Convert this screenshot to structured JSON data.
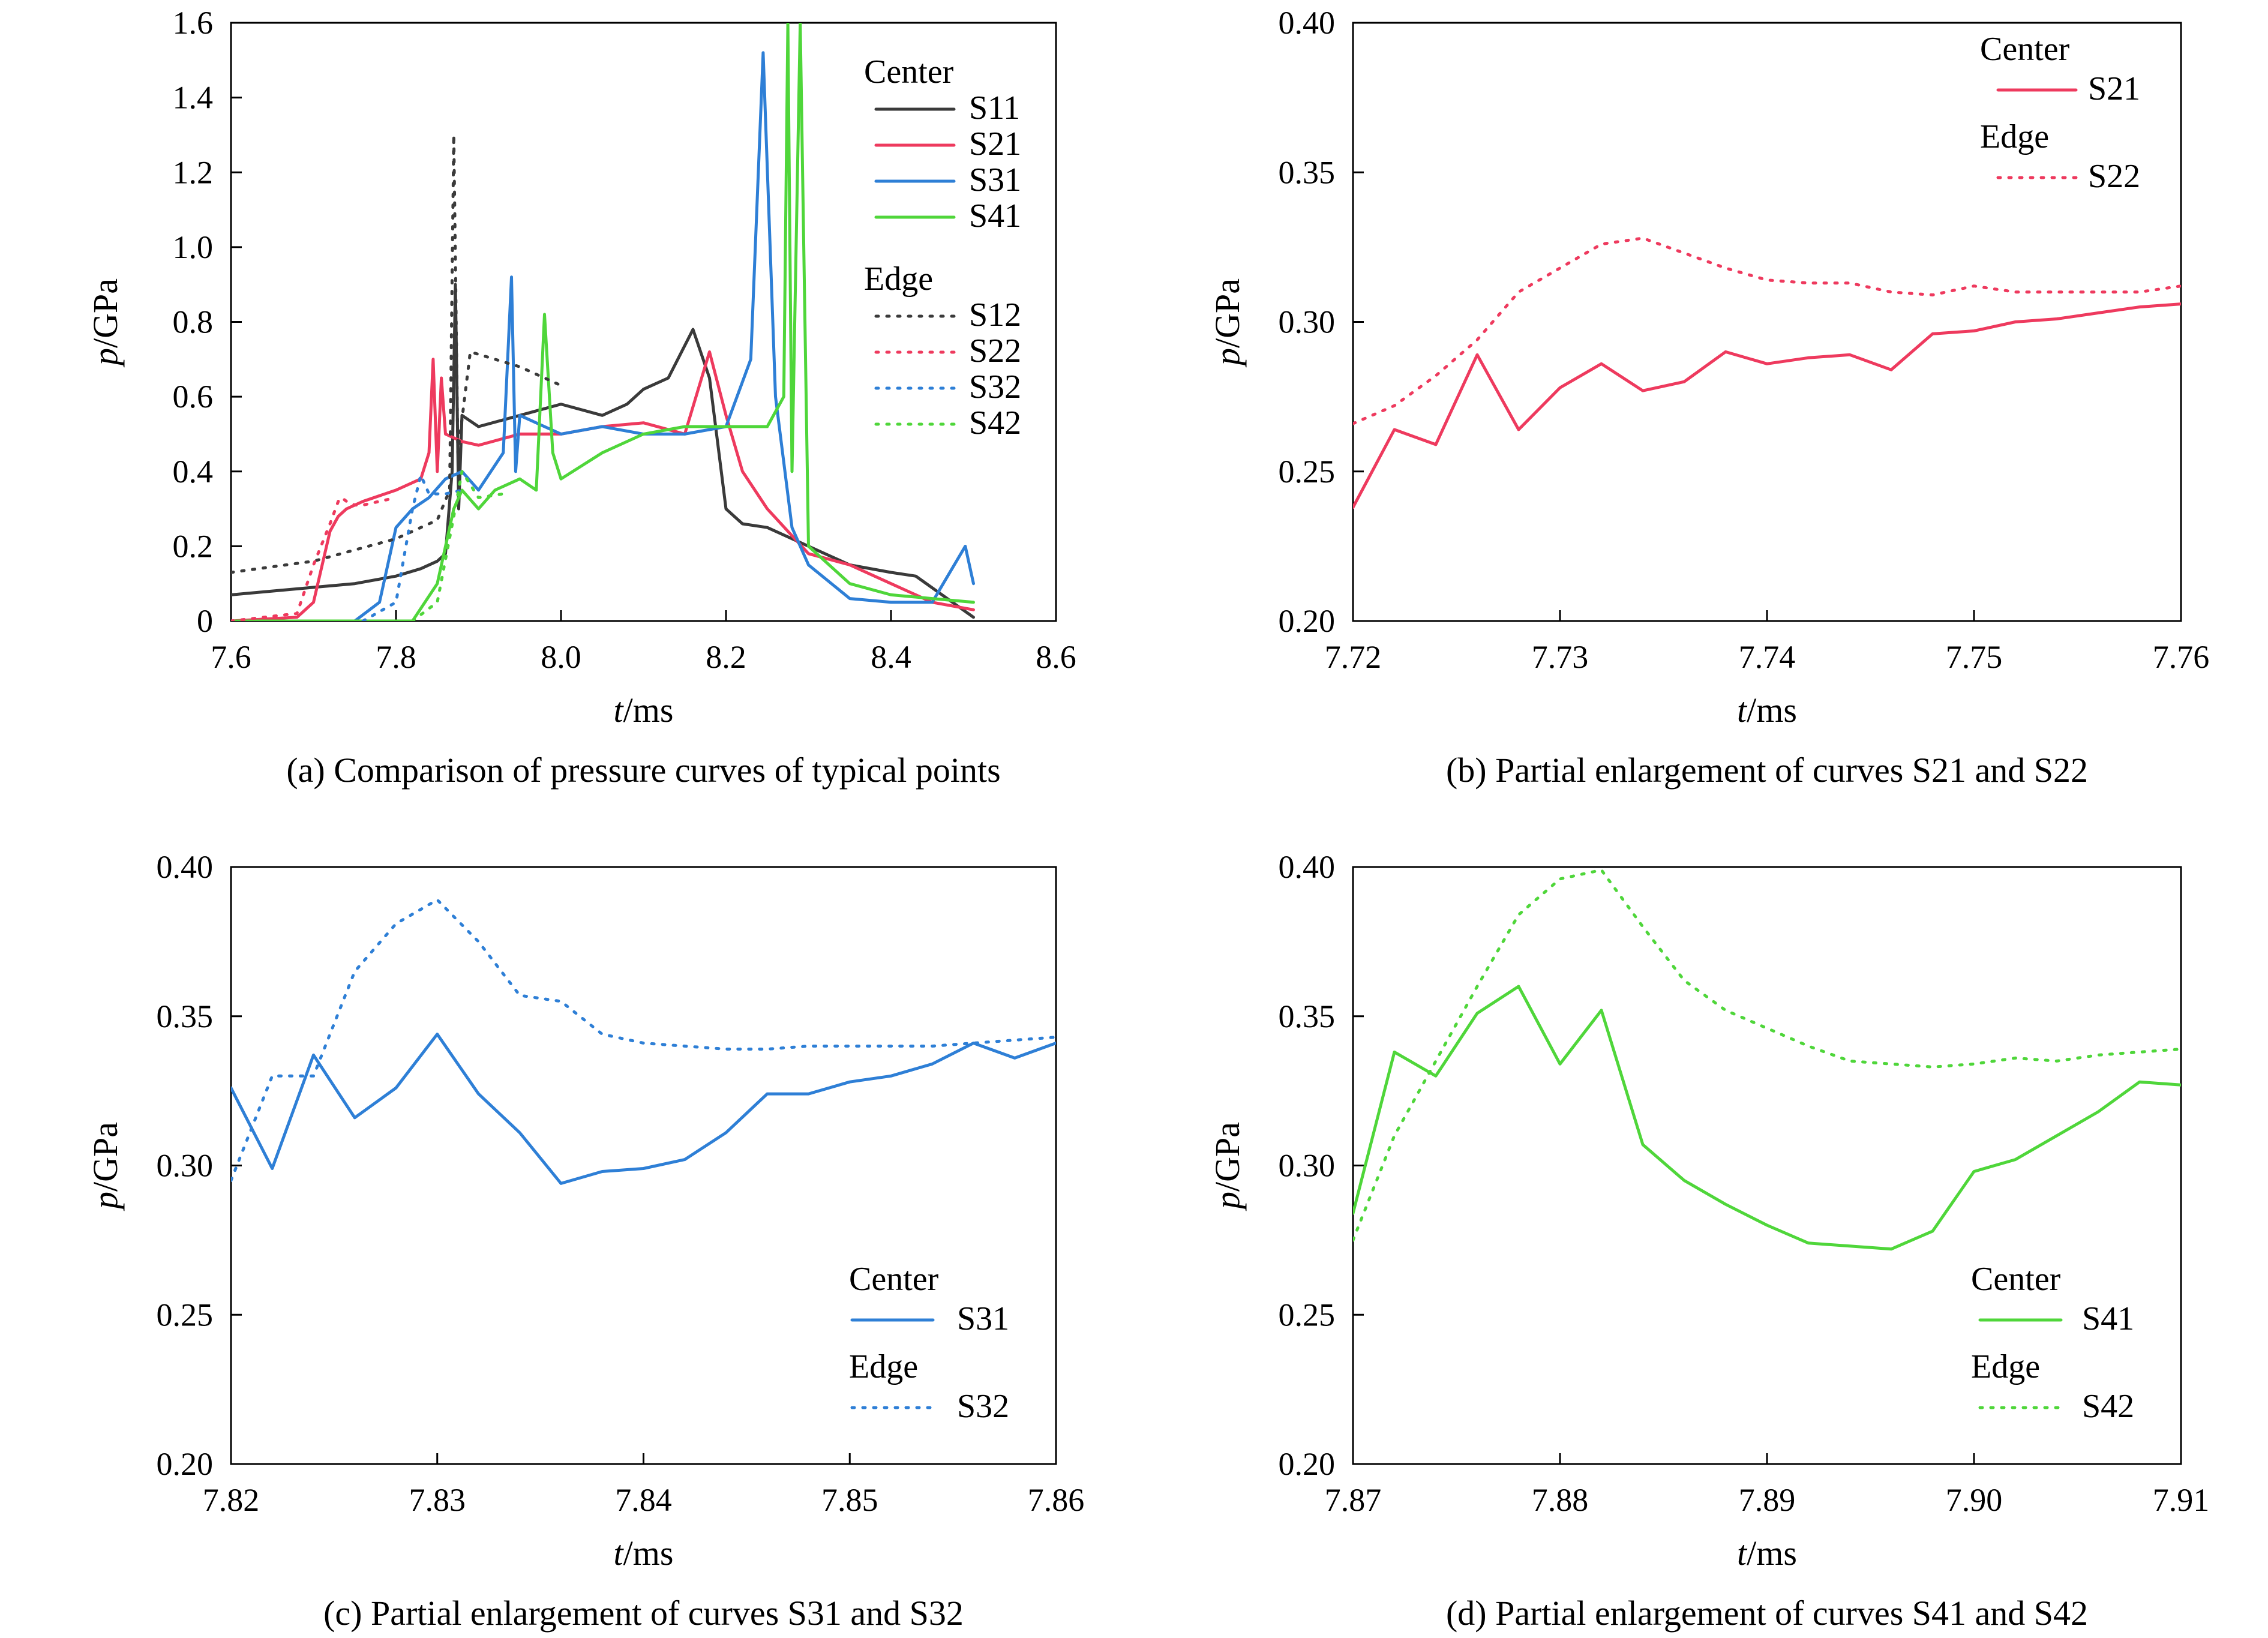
{
  "chart_data": [
    {
      "id": "a",
      "type": "line",
      "caption": "(a) Comparison of pressure curves of typical points",
      "xlabel_italic": "t",
      "xlabel_unit": "/ms",
      "ylabel_italic": "p",
      "ylabel_unit": "/GPa",
      "xlim": [
        7.6,
        8.6
      ],
      "ylim": [
        0,
        1.6
      ],
      "xticks": [
        "7.6",
        "7.8",
        "8.0",
        "8.2",
        "8.4",
        "8.6"
      ],
      "yticks": [
        "0",
        "0.2",
        "0.4",
        "0.6",
        "0.8",
        "1.0",
        "1.2",
        "1.4",
        "1.6"
      ],
      "legend_position": "top-right",
      "legend": [
        {
          "group": "Center",
          "entries": [
            "S11",
            "S21",
            "S31",
            "S41"
          ]
        },
        {
          "group": "Edge",
          "entries": [
            "S12",
            "S22",
            "S32",
            "S42"
          ]
        }
      ],
      "series": [
        {
          "name": "S11",
          "color": "#3a3a3a",
          "style": "solid",
          "x": [
            7.6,
            7.65,
            7.7,
            7.75,
            7.8,
            7.83,
            7.85,
            7.86,
            7.868,
            7.872,
            7.876,
            7.88,
            7.9,
            7.95,
            8.0,
            8.05,
            8.08,
            8.1,
            8.13,
            8.16,
            8.18,
            8.2,
            8.22,
            8.25,
            8.3,
            8.35,
            8.4,
            8.43,
            8.5
          ],
          "y": [
            0.07,
            0.08,
            0.09,
            0.1,
            0.12,
            0.14,
            0.16,
            0.18,
            0.4,
            0.9,
            0.3,
            0.55,
            0.52,
            0.55,
            0.58,
            0.55,
            0.58,
            0.62,
            0.65,
            0.78,
            0.65,
            0.3,
            0.26,
            0.25,
            0.2,
            0.15,
            0.13,
            0.12,
            0.01
          ]
        },
        {
          "name": "S21",
          "color": "#ee3a5e",
          "style": "solid",
          "x": [
            7.6,
            7.68,
            7.7,
            7.72,
            7.73,
            7.74,
            7.76,
            7.8,
            7.83,
            7.84,
            7.845,
            7.85,
            7.855,
            7.86,
            7.88,
            7.9,
            7.95,
            8.0,
            8.05,
            8.1,
            8.15,
            8.18,
            8.2,
            8.22,
            8.25,
            8.3,
            8.35,
            8.4,
            8.45,
            8.5
          ],
          "y": [
            0.0,
            0.01,
            0.05,
            0.24,
            0.28,
            0.3,
            0.32,
            0.35,
            0.38,
            0.45,
            0.7,
            0.4,
            0.65,
            0.5,
            0.48,
            0.47,
            0.5,
            0.5,
            0.52,
            0.53,
            0.5,
            0.72,
            0.55,
            0.4,
            0.3,
            0.18,
            0.15,
            0.1,
            0.05,
            0.03
          ]
        },
        {
          "name": "S31",
          "color": "#2e7fd6",
          "style": "solid",
          "x": [
            7.6,
            7.75,
            7.78,
            7.8,
            7.82,
            7.84,
            7.86,
            7.88,
            7.9,
            7.93,
            7.94,
            7.945,
            7.95,
            7.98,
            8.0,
            8.05,
            8.1,
            8.15,
            8.2,
            8.23,
            8.245,
            8.26,
            8.28,
            8.3,
            8.35,
            8.4,
            8.45,
            8.49,
            8.5
          ],
          "y": [
            0.0,
            0.0,
            0.05,
            0.25,
            0.3,
            0.33,
            0.38,
            0.4,
            0.35,
            0.45,
            0.92,
            0.4,
            0.55,
            0.52,
            0.5,
            0.52,
            0.5,
            0.5,
            0.52,
            0.7,
            1.52,
            0.6,
            0.25,
            0.15,
            0.06,
            0.05,
            0.05,
            0.2,
            0.1
          ]
        },
        {
          "name": "S41",
          "color": "#4fd63a",
          "style": "solid",
          "x": [
            7.6,
            7.82,
            7.85,
            7.87,
            7.88,
            7.9,
            7.92,
            7.95,
            7.97,
            7.98,
            7.99,
            8.0,
            8.05,
            8.1,
            8.15,
            8.2,
            8.25,
            8.27,
            8.275,
            8.28,
            8.29,
            8.3,
            8.35,
            8.4,
            8.45,
            8.5
          ],
          "y": [
            0.0,
            0.0,
            0.1,
            0.3,
            0.35,
            0.3,
            0.35,
            0.38,
            0.35,
            0.82,
            0.45,
            0.38,
            0.45,
            0.5,
            0.52,
            0.52,
            0.52,
            0.6,
            1.6,
            0.4,
            1.6,
            0.2,
            0.1,
            0.07,
            0.06,
            0.05
          ]
        },
        {
          "name": "S12",
          "color": "#3a3a3a",
          "style": "dotted",
          "x": [
            7.6,
            7.7,
            7.8,
            7.85,
            7.865,
            7.87,
            7.875,
            7.89,
            7.92,
            7.95,
            8.0
          ],
          "y": [
            0.13,
            0.16,
            0.22,
            0.27,
            0.35,
            1.3,
            0.45,
            0.72,
            0.7,
            0.68,
            0.63
          ]
        },
        {
          "name": "S22",
          "color": "#ee3a5e",
          "style": "dotted",
          "x": [
            7.6,
            7.68,
            7.7,
            7.72,
            7.73,
            7.734,
            7.74,
            7.75,
            7.76,
            7.8
          ],
          "y": [
            0.0,
            0.02,
            0.15,
            0.26,
            0.32,
            0.33,
            0.32,
            0.31,
            0.31,
            0.33
          ]
        },
        {
          "name": "S32",
          "color": "#2e7fd6",
          "style": "dotted",
          "x": [
            7.76,
            7.8,
            7.82,
            7.83,
            7.84,
            7.86,
            7.88
          ],
          "y": [
            0.0,
            0.05,
            0.3,
            0.39,
            0.34,
            0.34,
            0.35
          ]
        },
        {
          "name": "S42",
          "color": "#4fd63a",
          "style": "dotted",
          "x": [
            7.82,
            7.85,
            7.87,
            7.88,
            7.9,
            7.93
          ],
          "y": [
            0.0,
            0.05,
            0.28,
            0.4,
            0.33,
            0.34
          ]
        }
      ]
    },
    {
      "id": "b",
      "type": "line",
      "caption": "(b) Partial enlargement of curves S21 and S22",
      "xlabel_italic": "t",
      "xlabel_unit": "/ms",
      "ylabel_italic": "p",
      "ylabel_unit": "/GPa",
      "xlim": [
        7.72,
        7.76
      ],
      "ylim": [
        0.2,
        0.4
      ],
      "xticks": [
        "7.72",
        "7.73",
        "7.74",
        "7.75",
        "7.76"
      ],
      "yticks": [
        "0.20",
        "0.25",
        "0.30",
        "0.35",
        "0.40"
      ],
      "legend_position": "top-right",
      "legend": [
        {
          "group": "Center",
          "entries": [
            "S21"
          ]
        },
        {
          "group": "Edge",
          "entries": [
            "S22"
          ]
        }
      ],
      "series": [
        {
          "name": "S21",
          "color": "#ee3a5e",
          "style": "solid",
          "x": [
            7.72,
            7.722,
            7.724,
            7.726,
            7.728,
            7.73,
            7.732,
            7.734,
            7.736,
            7.738,
            7.74,
            7.742,
            7.744,
            7.746,
            7.748,
            7.75,
            7.752,
            7.754,
            7.756,
            7.758,
            7.76
          ],
          "y": [
            0.238,
            0.264,
            0.259,
            0.289,
            0.264,
            0.278,
            0.286,
            0.277,
            0.28,
            0.29,
            0.286,
            0.288,
            0.289,
            0.284,
            0.296,
            0.297,
            0.3,
            0.301,
            0.303,
            0.305,
            0.306
          ]
        },
        {
          "name": "S22",
          "color": "#ee3a5e",
          "style": "dotted",
          "x": [
            7.72,
            7.722,
            7.724,
            7.726,
            7.728,
            7.73,
            7.732,
            7.734,
            7.736,
            7.738,
            7.74,
            7.742,
            7.744,
            7.746,
            7.748,
            7.75,
            7.752,
            7.754,
            7.756,
            7.758,
            7.76
          ],
          "y": [
            0.266,
            0.272,
            0.282,
            0.294,
            0.31,
            0.318,
            0.326,
            0.328,
            0.323,
            0.318,
            0.314,
            0.313,
            0.313,
            0.31,
            0.309,
            0.312,
            0.31,
            0.31,
            0.31,
            0.31,
            0.312
          ]
        }
      ]
    },
    {
      "id": "c",
      "type": "line",
      "caption": "(c) Partial enlargement of curves S31 and S32",
      "xlabel_italic": "t",
      "xlabel_unit": "/ms",
      "ylabel_italic": "p",
      "ylabel_unit": "/GPa",
      "xlim": [
        7.82,
        7.86
      ],
      "ylim": [
        0.2,
        0.4
      ],
      "xticks": [
        "7.82",
        "7.83",
        "7.84",
        "7.85",
        "7.86"
      ],
      "yticks": [
        "0.20",
        "0.25",
        "0.30",
        "0.35",
        "0.40"
      ],
      "legend_position": "bottom-right",
      "legend": [
        {
          "group": "Center",
          "entries": [
            "S31"
          ]
        },
        {
          "group": "Edge",
          "entries": [
            "S32"
          ]
        }
      ],
      "series": [
        {
          "name": "S31",
          "color": "#2e7fd6",
          "style": "solid",
          "x": [
            7.82,
            7.822,
            7.824,
            7.826,
            7.828,
            7.83,
            7.832,
            7.834,
            7.836,
            7.838,
            7.84,
            7.842,
            7.844,
            7.846,
            7.848,
            7.85,
            7.852,
            7.854,
            7.856,
            7.858,
            7.86
          ],
          "y": [
            0.326,
            0.299,
            0.337,
            0.316,
            0.326,
            0.344,
            0.324,
            0.311,
            0.294,
            0.298,
            0.299,
            0.302,
            0.311,
            0.324,
            0.324,
            0.328,
            0.33,
            0.334,
            0.341,
            0.336,
            0.341
          ]
        },
        {
          "name": "S32",
          "color": "#2e7fd6",
          "style": "dotted",
          "x": [
            7.82,
            7.822,
            7.824,
            7.826,
            7.828,
            7.83,
            7.832,
            7.834,
            7.836,
            7.838,
            7.84,
            7.842,
            7.844,
            7.846,
            7.848,
            7.85,
            7.852,
            7.854,
            7.856,
            7.858,
            7.86
          ],
          "y": [
            0.295,
            0.33,
            0.33,
            0.365,
            0.381,
            0.389,
            0.375,
            0.357,
            0.355,
            0.344,
            0.341,
            0.34,
            0.339,
            0.339,
            0.34,
            0.34,
            0.34,
            0.34,
            0.341,
            0.342,
            0.343
          ]
        }
      ]
    },
    {
      "id": "d",
      "type": "line",
      "caption": "(d) Partial enlargement of curves S41 and S42",
      "xlabel_italic": "t",
      "xlabel_unit": "/ms",
      "ylabel_italic": "p",
      "ylabel_unit": "/GPa",
      "xlim": [
        7.87,
        7.91
      ],
      "ylim": [
        0.2,
        0.4
      ],
      "xticks": [
        "7.87",
        "7.88",
        "7.89",
        "7.90",
        "7.91"
      ],
      "yticks": [
        "0.20",
        "0.25",
        "0.30",
        "0.35",
        "0.40"
      ],
      "legend_position": "bottom-right",
      "legend": [
        {
          "group": "Center",
          "entries": [
            "S41"
          ]
        },
        {
          "group": "Edge",
          "entries": [
            "S42"
          ]
        }
      ],
      "series": [
        {
          "name": "S41",
          "color": "#4fd63a",
          "style": "solid",
          "x": [
            7.87,
            7.872,
            7.874,
            7.876,
            7.878,
            7.88,
            7.882,
            7.884,
            7.886,
            7.888,
            7.89,
            7.892,
            7.894,
            7.896,
            7.898,
            7.9,
            7.902,
            7.904,
            7.906,
            7.908,
            7.91
          ],
          "y": [
            0.284,
            0.338,
            0.33,
            0.351,
            0.36,
            0.334,
            0.352,
            0.307,
            0.295,
            0.287,
            0.28,
            0.274,
            0.273,
            0.272,
            0.278,
            0.298,
            0.302,
            0.31,
            0.318,
            0.328,
            0.327
          ]
        },
        {
          "name": "S42",
          "color": "#4fd63a",
          "style": "dotted",
          "x": [
            7.87,
            7.872,
            7.874,
            7.876,
            7.878,
            7.88,
            7.882,
            7.884,
            7.886,
            7.888,
            7.89,
            7.892,
            7.894,
            7.896,
            7.898,
            7.9,
            7.902,
            7.904,
            7.906,
            7.908,
            7.91
          ],
          "y": [
            0.275,
            0.31,
            0.335,
            0.36,
            0.384,
            0.396,
            0.399,
            0.38,
            0.362,
            0.352,
            0.346,
            0.34,
            0.335,
            0.334,
            0.333,
            0.334,
            0.336,
            0.335,
            0.337,
            0.338,
            0.339
          ]
        }
      ]
    }
  ]
}
